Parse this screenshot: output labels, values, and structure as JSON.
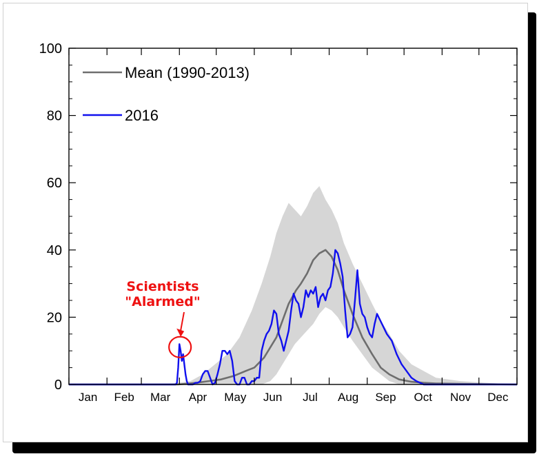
{
  "chart_data": {
    "type": "line",
    "title": "",
    "xlabel": "",
    "ylabel": "",
    "ylim": [
      0,
      100
    ],
    "y_ticks": [
      "0",
      "20",
      "40",
      "60",
      "80",
      "100"
    ],
    "months": [
      "Jan",
      "Feb",
      "Mar",
      "Apr",
      "May",
      "Jun",
      "Jul",
      "Aug",
      "Sep",
      "Oct",
      "Nov",
      "Dec"
    ],
    "x_unit": "day of year",
    "xlim": [
      1,
      366
    ],
    "grid": false,
    "legend_position": "top-left",
    "series": [
      {
        "name": "Mean (1990-2013)",
        "color": "#6e6e6e",
        "x": [
          1,
          60,
          90,
          105,
          115,
          125,
          135,
          145,
          152,
          160,
          170,
          175,
          180,
          186,
          190,
          195,
          200,
          205,
          210,
          215,
          220,
          225,
          232,
          240,
          248,
          255,
          262,
          270,
          280,
          290,
          300,
          320,
          340,
          366
        ],
        "values": [
          0,
          0,
          0,
          0.5,
          1,
          1.5,
          2.5,
          4,
          5,
          8,
          14,
          19,
          24,
          28,
          30,
          33,
          37,
          39,
          40,
          38,
          34,
          28,
          21,
          14,
          9,
          5,
          3,
          1.5,
          0.8,
          0.5,
          0.3,
          0.2,
          0.1,
          0
        ]
      },
      {
        "name": "2016",
        "color": "#1010ee",
        "x": [
          1,
          60,
          85,
          88,
          89,
          90,
          91,
          92,
          93,
          94,
          95,
          96,
          97,
          98,
          100,
          102,
          104,
          106,
          108,
          110,
          112,
          114,
          116,
          118,
          120,
          122,
          124,
          126,
          128,
          130,
          132,
          134,
          136,
          138,
          140,
          142,
          144,
          146,
          148,
          150,
          152,
          154,
          156,
          158,
          160,
          162,
          164,
          166,
          168,
          170,
          172,
          174,
          176,
          178,
          180,
          182,
          184,
          186,
          188,
          190,
          192,
          194,
          196,
          198,
          200,
          202,
          204,
          206,
          208,
          210,
          212,
          214,
          216,
          218,
          220,
          222,
          224,
          226,
          228,
          230,
          232,
          234,
          236,
          238,
          240,
          242,
          244,
          246,
          248,
          250,
          252,
          256,
          260,
          264,
          268,
          272,
          276,
          280,
          284,
          290,
          300,
          366
        ],
        "values": [
          0,
          0,
          0,
          0,
          0.5,
          5,
          12,
          10,
          7,
          9,
          6,
          3,
          1,
          0,
          0,
          0,
          0.5,
          0.5,
          1,
          3,
          4,
          4,
          2,
          0,
          0.5,
          3,
          6,
          10,
          10,
          9,
          10,
          7,
          1,
          0,
          0,
          2,
          2,
          0,
          0,
          1,
          1,
          2,
          2,
          10,
          13,
          15,
          16,
          18,
          22,
          21,
          15,
          13,
          10,
          13,
          16,
          22,
          27,
          25,
          24,
          20,
          23,
          28,
          26,
          28,
          27,
          29,
          23,
          26,
          27,
          25,
          28,
          29,
          33,
          40,
          39,
          36,
          32,
          22,
          14,
          15,
          17,
          25,
          34,
          24,
          21,
          20,
          17,
          15,
          14,
          18,
          21,
          18,
          15,
          13,
          9,
          6,
          4,
          2,
          1,
          0,
          0,
          0
        ]
      },
      {
        "name": "",
        "type": "range-band",
        "color": "#d6d6d6",
        "x": [
          1,
          80,
          100,
          110,
          120,
          130,
          140,
          150,
          158,
          165,
          170,
          175,
          180,
          185,
          190,
          195,
          200,
          205,
          210,
          215,
          220,
          225,
          232,
          240,
          248,
          255,
          262,
          270,
          280,
          290,
          300,
          320,
          340,
          366
        ],
        "upper": [
          0,
          0,
          1,
          3,
          6,
          9,
          14,
          22,
          30,
          38,
          45,
          50,
          54,
          52,
          50,
          53,
          57,
          59,
          55,
          52,
          48,
          42,
          36,
          30,
          24,
          19,
          15,
          10,
          6,
          4,
          2,
          1,
          0.5,
          0
        ],
        "lower": [
          0,
          0,
          0,
          0,
          0,
          0,
          0,
          0,
          0,
          1,
          3,
          6,
          9,
          12,
          14,
          16,
          18,
          21,
          23,
          22,
          20,
          17,
          13,
          9,
          5,
          3,
          1,
          0,
          0,
          0,
          0,
          0,
          0,
          0
        ]
      }
    ],
    "annotations": [
      {
        "lines": [
          "Scientists",
          "\"Alarmed\""
        ],
        "color": "#ee1111",
        "target_x": 91.5,
        "target_y": 10.5
      }
    ]
  }
}
